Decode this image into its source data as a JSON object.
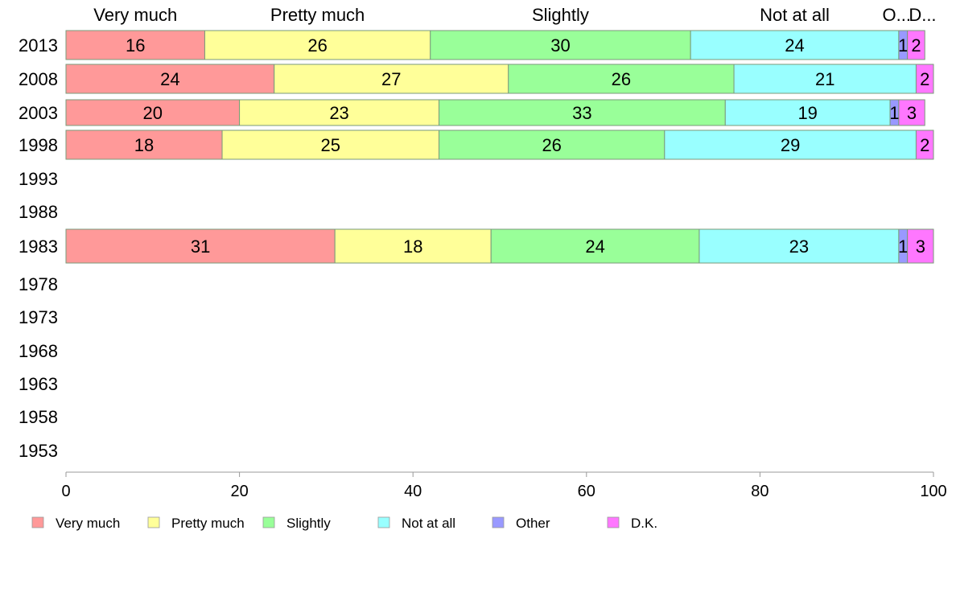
{
  "chart_data": {
    "type": "bar",
    "orientation": "horizontal",
    "stacked": true,
    "categories": [
      "2013",
      "2008",
      "2003",
      "1998",
      "1993",
      "1988",
      "1983",
      "1978",
      "1973",
      "1968",
      "1963",
      "1958",
      "1953"
    ],
    "series": [
      {
        "name": "Very much",
        "color": "#ff9999",
        "values": [
          16,
          24,
          20,
          18,
          null,
          null,
          31,
          null,
          null,
          null,
          null,
          null,
          null
        ]
      },
      {
        "name": "Pretty much",
        "color": "#ffff99",
        "values": [
          26,
          27,
          23,
          25,
          null,
          null,
          18,
          null,
          null,
          null,
          null,
          null,
          null
        ]
      },
      {
        "name": "Slightly",
        "color": "#99ff99",
        "values": [
          30,
          26,
          33,
          26,
          null,
          null,
          24,
          null,
          null,
          null,
          null,
          null,
          null
        ]
      },
      {
        "name": "Not at all",
        "color": "#99ffff",
        "values": [
          24,
          21,
          19,
          29,
          null,
          null,
          23,
          null,
          null,
          null,
          null,
          null,
          null
        ]
      },
      {
        "name": "Other",
        "color": "#9999ff",
        "values": [
          1,
          0,
          1,
          0,
          null,
          null,
          1,
          null,
          null,
          null,
          null,
          null,
          null
        ]
      },
      {
        "name": "D.K.",
        "color": "#ff77ff",
        "values": [
          2,
          2,
          3,
          2,
          null,
          null,
          3,
          null,
          null,
          null,
          null,
          null,
          null
        ]
      }
    ],
    "top_labels": [
      "Very much",
      "Pretty much",
      "Slightly",
      "Not at all",
      "O...",
      "D..."
    ],
    "xlim": [
      0,
      100
    ],
    "xticks": [
      0,
      20,
      40,
      60,
      80,
      100
    ],
    "legend_position": "bottom",
    "grid": false
  }
}
